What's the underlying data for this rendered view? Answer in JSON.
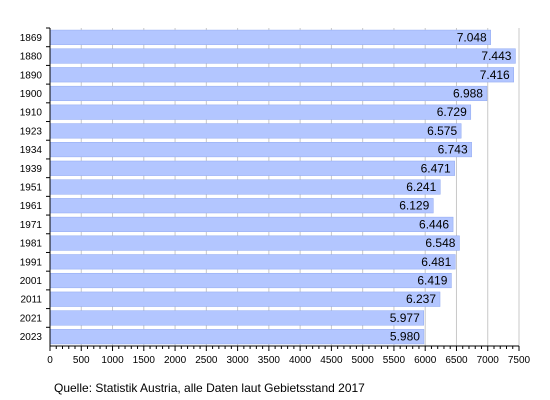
{
  "chart_data": {
    "type": "bar",
    "orientation": "horizontal",
    "categories": [
      "1869",
      "1880",
      "1890",
      "1900",
      "1910",
      "1923",
      "1934",
      "1939",
      "1951",
      "1961",
      "1971",
      "1981",
      "1991",
      "2001",
      "2011",
      "2021",
      "2023"
    ],
    "values": [
      7048,
      7443,
      7416,
      6988,
      6729,
      6575,
      6743,
      6471,
      6241,
      6129,
      6446,
      6548,
      6481,
      6419,
      6237,
      5977,
      5980
    ],
    "value_labels": [
      "7.048",
      "7.443",
      "7.416",
      "6.988",
      "6.729",
      "6.575",
      "6.743",
      "6.471",
      "6.241",
      "6.129",
      "6.446",
      "6.548",
      "6.481",
      "6.419",
      "6.237",
      "5.977",
      "5.980"
    ],
    "xlim": [
      0,
      7500
    ],
    "xticks": [
      0,
      500,
      1000,
      1500,
      2000,
      2500,
      3000,
      3500,
      4000,
      4500,
      5000,
      5500,
      6000,
      6500,
      7000,
      7500
    ],
    "grid": true,
    "bar_color": "#b3c6ff",
    "bar_border_color": "#8fa8f0",
    "grid_color": "#c8c8c8",
    "title": "",
    "xlabel": "",
    "ylabel": ""
  },
  "source_note": "Quelle: Statistik Austria, alle Daten laut Gebietsstand 2017"
}
